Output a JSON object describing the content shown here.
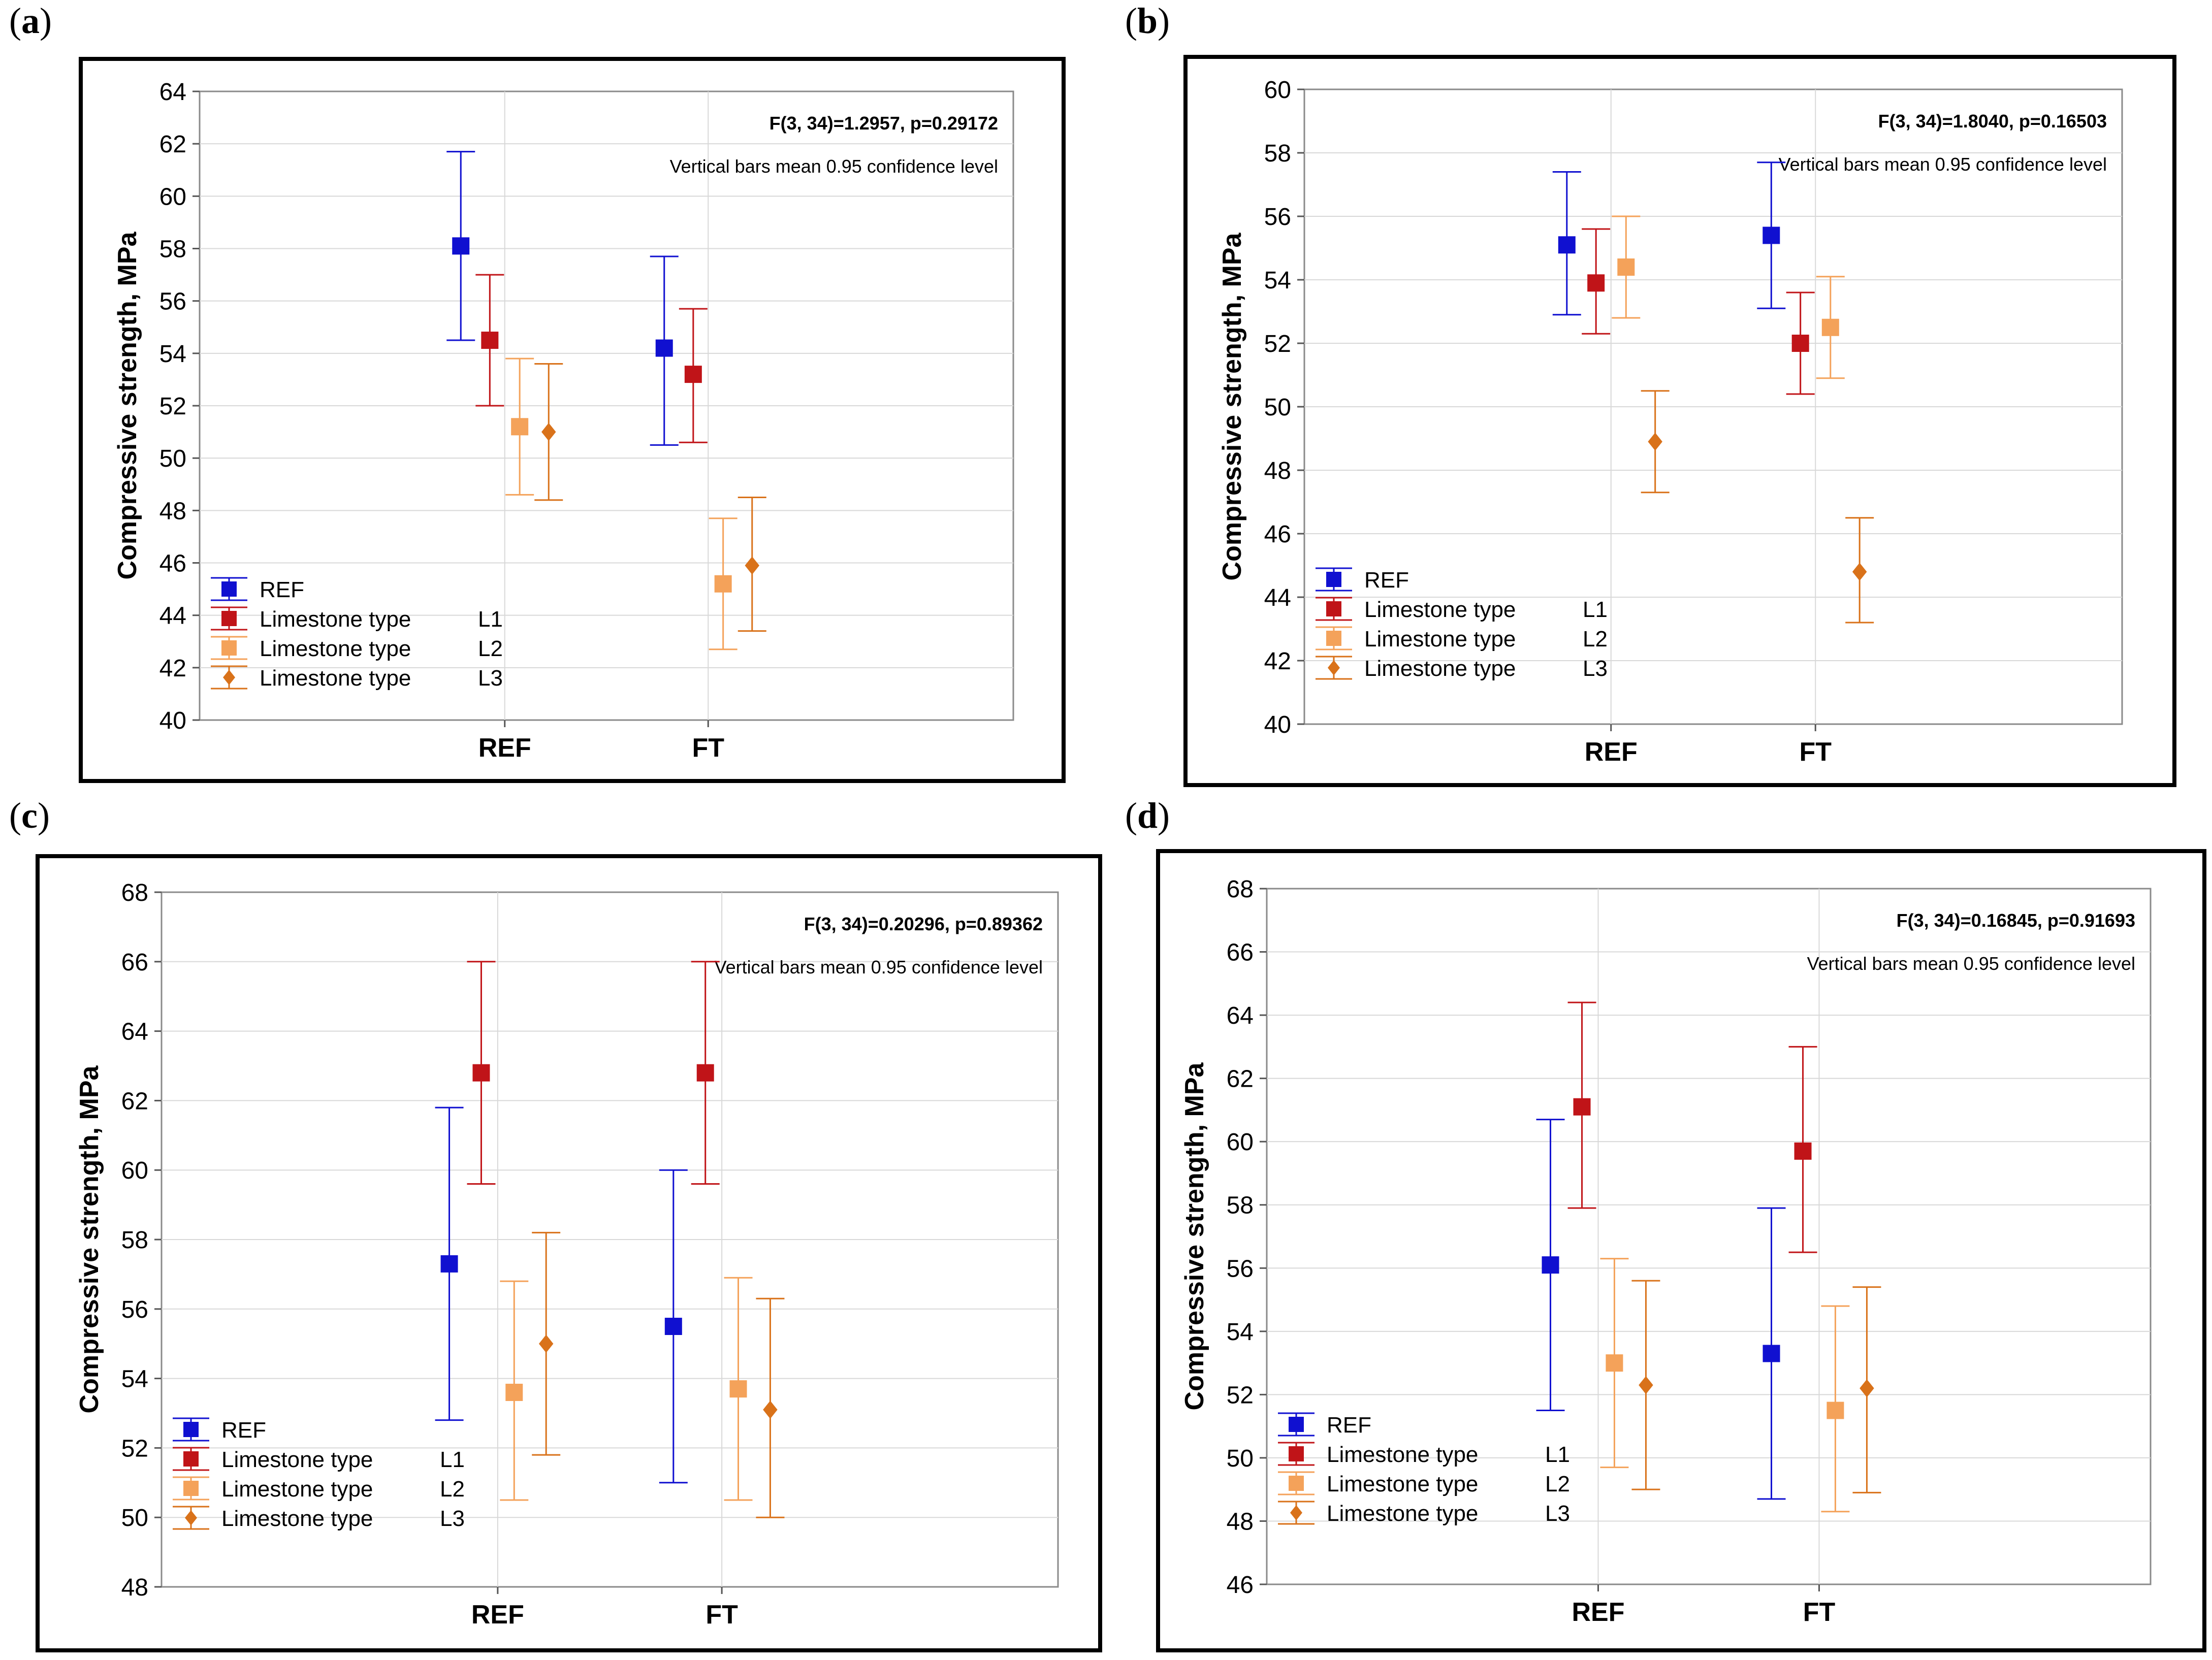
{
  "chart_data": [
    {
      "type": "scatter",
      "panel_label": "a",
      "title": "",
      "stat_text": "F(3, 34)=1.2957, p=0.29172",
      "note_text": "Vertical bars mean 0.95 confidence level",
      "xlabel": "",
      "ylabel": "Compressive strength, MPa",
      "categories": [
        "REF",
        "FT"
      ],
      "ylim": [
        40,
        64
      ],
      "yticks": [
        "40",
        "42",
        "44",
        "46",
        "48",
        "50",
        "52",
        "54",
        "56",
        "58",
        "60",
        "62",
        "64"
      ],
      "legend_position": "bottom-left",
      "series": [
        {
          "name": "REF",
          "label": "REF",
          "suffix": "",
          "marker": "square",
          "color": "#1010d0",
          "values": [
            58.1,
            54.2
          ],
          "lower": [
            54.5,
            50.5
          ],
          "upper": [
            61.7,
            57.7
          ]
        },
        {
          "name": "Limestone type L1",
          "label": "Limestone type",
          "suffix": "L1",
          "marker": "square",
          "color": "#c01418",
          "values": [
            54.5,
            53.2
          ],
          "lower": [
            52.0,
            50.6
          ],
          "upper": [
            57.0,
            55.7
          ]
        },
        {
          "name": "Limestone type L2",
          "label": "Limestone type",
          "suffix": "L2",
          "marker": "square",
          "color": "#f4a25a",
          "values": [
            51.2,
            45.2
          ],
          "lower": [
            48.6,
            42.7
          ],
          "upper": [
            53.8,
            47.7
          ]
        },
        {
          "name": "Limestone type L3",
          "label": "Limestone type",
          "suffix": "L3",
          "marker": "diamond",
          "color": "#d9721a",
          "values": [
            51.0,
            45.9
          ],
          "lower": [
            48.4,
            43.4
          ],
          "upper": [
            53.6,
            48.5
          ]
        }
      ]
    },
    {
      "type": "scatter",
      "panel_label": "b",
      "title": "",
      "stat_text": "F(3, 34)=1.8040, p=0.16503",
      "note_text": "Vertical bars mean 0.95 confidence level",
      "xlabel": "",
      "ylabel": "Compressive strength, MPa",
      "categories": [
        "REF",
        "FT"
      ],
      "ylim": [
        40,
        60
      ],
      "yticks": [
        "40",
        "42",
        "44",
        "46",
        "48",
        "50",
        "52",
        "54",
        "56",
        "58",
        "60"
      ],
      "legend_position": "bottom-left",
      "series": [
        {
          "name": "REF",
          "label": "REF",
          "suffix": "",
          "marker": "square",
          "color": "#1010d0",
          "values": [
            55.1,
            55.4
          ],
          "lower": [
            52.9,
            53.1
          ],
          "upper": [
            57.4,
            57.7
          ]
        },
        {
          "name": "Limestone type L1",
          "label": "Limestone type",
          "suffix": "L1",
          "marker": "square",
          "color": "#c01418",
          "values": [
            53.9,
            52.0
          ],
          "lower": [
            52.3,
            50.4
          ],
          "upper": [
            55.6,
            53.6
          ]
        },
        {
          "name": "Limestone type L2",
          "label": "Limestone type",
          "suffix": "L2",
          "marker": "square",
          "color": "#f4a25a",
          "values": [
            54.4,
            52.5
          ],
          "lower": [
            52.8,
            50.9
          ],
          "upper": [
            56.0,
            54.1
          ]
        },
        {
          "name": "Limestone type L3",
          "label": "Limestone type",
          "suffix": "L3",
          "marker": "diamond",
          "color": "#d9721a",
          "values": [
            48.9,
            44.8
          ],
          "lower": [
            47.3,
            43.2
          ],
          "upper": [
            50.5,
            46.5
          ]
        }
      ]
    },
    {
      "type": "scatter",
      "panel_label": "c",
      "title": "",
      "stat_text": "F(3, 34)=0.20296, p=0.89362",
      "note_text": "Vertical bars mean 0.95 confidence level",
      "xlabel": "",
      "ylabel": "Compressive strength, MPa",
      "categories": [
        "REF",
        "FT"
      ],
      "ylim": [
        48,
        68
      ],
      "yticks": [
        "48",
        "50",
        "52",
        "54",
        "56",
        "58",
        "60",
        "62",
        "64",
        "66",
        "68"
      ],
      "legend_position": "bottom-left",
      "series": [
        {
          "name": "REF",
          "label": "REF",
          "suffix": "",
          "marker": "square",
          "color": "#1010d0",
          "values": [
            57.3,
            55.5
          ],
          "lower": [
            52.8,
            51.0
          ],
          "upper": [
            61.8,
            60.0
          ]
        },
        {
          "name": "Limestone type L1",
          "label": "Limestone type",
          "suffix": "L1",
          "marker": "square",
          "color": "#c01418",
          "values": [
            62.8,
            62.8
          ],
          "lower": [
            59.6,
            59.6
          ],
          "upper": [
            66.0,
            66.0
          ]
        },
        {
          "name": "Limestone type L2",
          "label": "Limestone type",
          "suffix": "L2",
          "marker": "square",
          "color": "#f4a25a",
          "values": [
            53.6,
            53.7
          ],
          "lower": [
            50.5,
            50.5
          ],
          "upper": [
            56.8,
            56.9
          ]
        },
        {
          "name": "Limestone type L3",
          "label": "Limestone type",
          "suffix": "L3",
          "marker": "diamond",
          "color": "#d9721a",
          "values": [
            55.0,
            53.1
          ],
          "lower": [
            51.8,
            50.0
          ],
          "upper": [
            58.2,
            56.3
          ]
        }
      ]
    },
    {
      "type": "scatter",
      "panel_label": "d",
      "title": "",
      "stat_text": "F(3, 34)=0.16845, p=0.91693",
      "note_text": "Vertical bars mean 0.95 confidence level",
      "xlabel": "",
      "ylabel": "Compressive strength, MPa",
      "categories": [
        "REF",
        "FT"
      ],
      "ylim": [
        46,
        68
      ],
      "yticks": [
        "46",
        "48",
        "50",
        "52",
        "54",
        "56",
        "58",
        "60",
        "62",
        "64",
        "66",
        "68"
      ],
      "legend_position": "bottom-left",
      "series": [
        {
          "name": "REF",
          "label": "REF",
          "suffix": "",
          "marker": "square",
          "color": "#1010d0",
          "values": [
            56.1,
            53.3
          ],
          "lower": [
            51.5,
            48.7
          ],
          "upper": [
            60.7,
            57.9
          ]
        },
        {
          "name": "Limestone type L1",
          "label": "Limestone type",
          "suffix": "L1",
          "marker": "square",
          "color": "#c01418",
          "values": [
            61.1,
            59.7
          ],
          "lower": [
            57.9,
            56.5
          ],
          "upper": [
            64.4,
            63.0
          ]
        },
        {
          "name": "Limestone type L2",
          "label": "Limestone type",
          "suffix": "L2",
          "marker": "square",
          "color": "#f4a25a",
          "values": [
            53.0,
            51.5
          ],
          "lower": [
            49.7,
            48.3
          ],
          "upper": [
            56.3,
            54.8
          ]
        },
        {
          "name": "Limestone type L3",
          "label": "Limestone type",
          "suffix": "L3",
          "marker": "diamond",
          "color": "#d9721a",
          "values": [
            52.3,
            52.2
          ],
          "lower": [
            49.0,
            48.9
          ],
          "upper": [
            55.6,
            55.4
          ]
        }
      ]
    }
  ]
}
